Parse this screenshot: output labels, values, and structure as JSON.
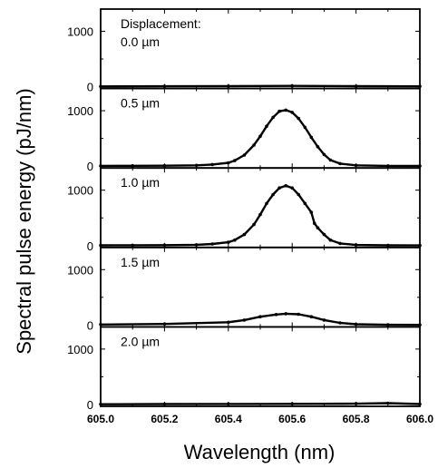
{
  "chart_data": {
    "type": "line",
    "xlabel": "Wavelength (nm)",
    "ylabel": "Spectral pulse energy (pJ/nm)",
    "xlim": [
      605.0,
      606.0
    ],
    "ylim": [
      0,
      1400
    ],
    "x_ticks": [
      605.0,
      605.2,
      605.4,
      605.6,
      605.8,
      606.0
    ],
    "x_tick_labels": [
      "605.0",
      "605.2",
      "605.4",
      "605.6",
      "605.8",
      "606.0"
    ],
    "y_ticks": [
      0,
      1000
    ],
    "y_tick_labels": [
      "0",
      "1000"
    ],
    "grid": false,
    "panels": [
      {
        "label_lines": [
          "Displacement:",
          "0.0 µm"
        ],
        "x": [
          605.0,
          605.2,
          605.4,
          605.6,
          605.8,
          606.0
        ],
        "y": [
          5,
          8,
          12,
          14,
          10,
          6
        ]
      },
      {
        "label_lines": [
          "0.5 µm"
        ],
        "x": [
          605.0,
          605.1,
          605.2,
          605.3,
          605.35,
          605.4,
          605.42,
          605.45,
          605.48,
          605.5,
          605.52,
          605.54,
          605.56,
          605.58,
          605.6,
          605.62,
          605.64,
          605.66,
          605.68,
          605.7,
          605.72,
          605.75,
          605.8,
          605.9,
          606.0
        ],
        "y": [
          5,
          6,
          8,
          15,
          30,
          60,
          100,
          200,
          380,
          540,
          720,
          880,
          990,
          1010,
          970,
          860,
          700,
          520,
          350,
          210,
          110,
          45,
          15,
          5,
          3
        ]
      },
      {
        "label_lines": [
          "1.0 µm"
        ],
        "x": [
          605.0,
          605.1,
          605.2,
          605.3,
          605.35,
          605.4,
          605.42,
          605.45,
          605.48,
          605.5,
          605.52,
          605.54,
          605.56,
          605.58,
          605.6,
          605.62,
          605.64,
          605.66,
          605.67,
          605.68,
          605.7,
          605.72,
          605.75,
          605.8,
          605.9,
          606.0
        ],
        "y": [
          5,
          6,
          8,
          15,
          30,
          60,
          100,
          200,
          380,
          560,
          760,
          920,
          1040,
          1080,
          1040,
          920,
          760,
          600,
          400,
          320,
          200,
          100,
          40,
          12,
          5,
          3
        ]
      },
      {
        "label_lines": [
          "1.5 µm"
        ],
        "x": [
          605.0,
          605.2,
          605.4,
          605.45,
          605.5,
          605.55,
          605.58,
          605.62,
          605.66,
          605.7,
          605.75,
          605.8,
          605.9,
          606.0
        ],
        "y": [
          10,
          20,
          50,
          90,
          150,
          190,
          205,
          195,
          150,
          90,
          40,
          15,
          5,
          3
        ]
      },
      {
        "label_lines": [
          "2.0 µm"
        ],
        "x": [
          605.0,
          605.2,
          605.4,
          605.6,
          605.8,
          605.9,
          606.0
        ],
        "y": [
          5,
          8,
          10,
          12,
          15,
          25,
          8
        ]
      }
    ]
  }
}
